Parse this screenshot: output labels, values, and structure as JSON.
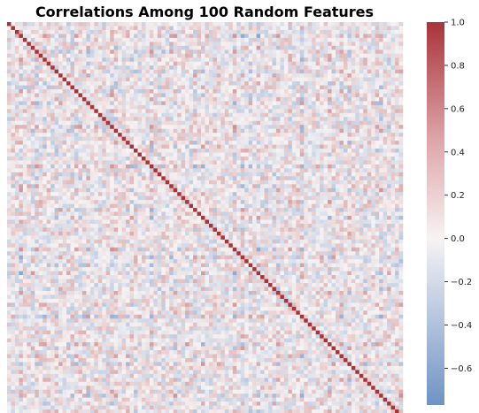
{
  "chart_data": {
    "type": "heatmap",
    "title": "Correlations Among 100 Random Features",
    "n_features": 100,
    "diagonal_value": 1.0,
    "value_range": [
      -0.77,
      1.0
    ],
    "xlabel": "",
    "ylabel": "",
    "axis_tick_labels": "none",
    "grid": false,
    "colormap": "vlag (blue-white-red diverging)",
    "colorbar": {
      "placement": "right",
      "ticks": [
        1.0,
        0.8,
        0.6,
        0.4,
        0.2,
        0.0,
        -0.2,
        -0.4,
        -0.6
      ],
      "tick_labels": [
        "1.0",
        "0.8",
        "0.6",
        "0.4",
        "0.2",
        "0.0",
        "−0.2",
        "−0.4",
        "−0.6"
      ]
    },
    "colors": {
      "min": "#6f93c4",
      "mid": "#f7f3f3",
      "max": "#a8343a"
    }
  }
}
